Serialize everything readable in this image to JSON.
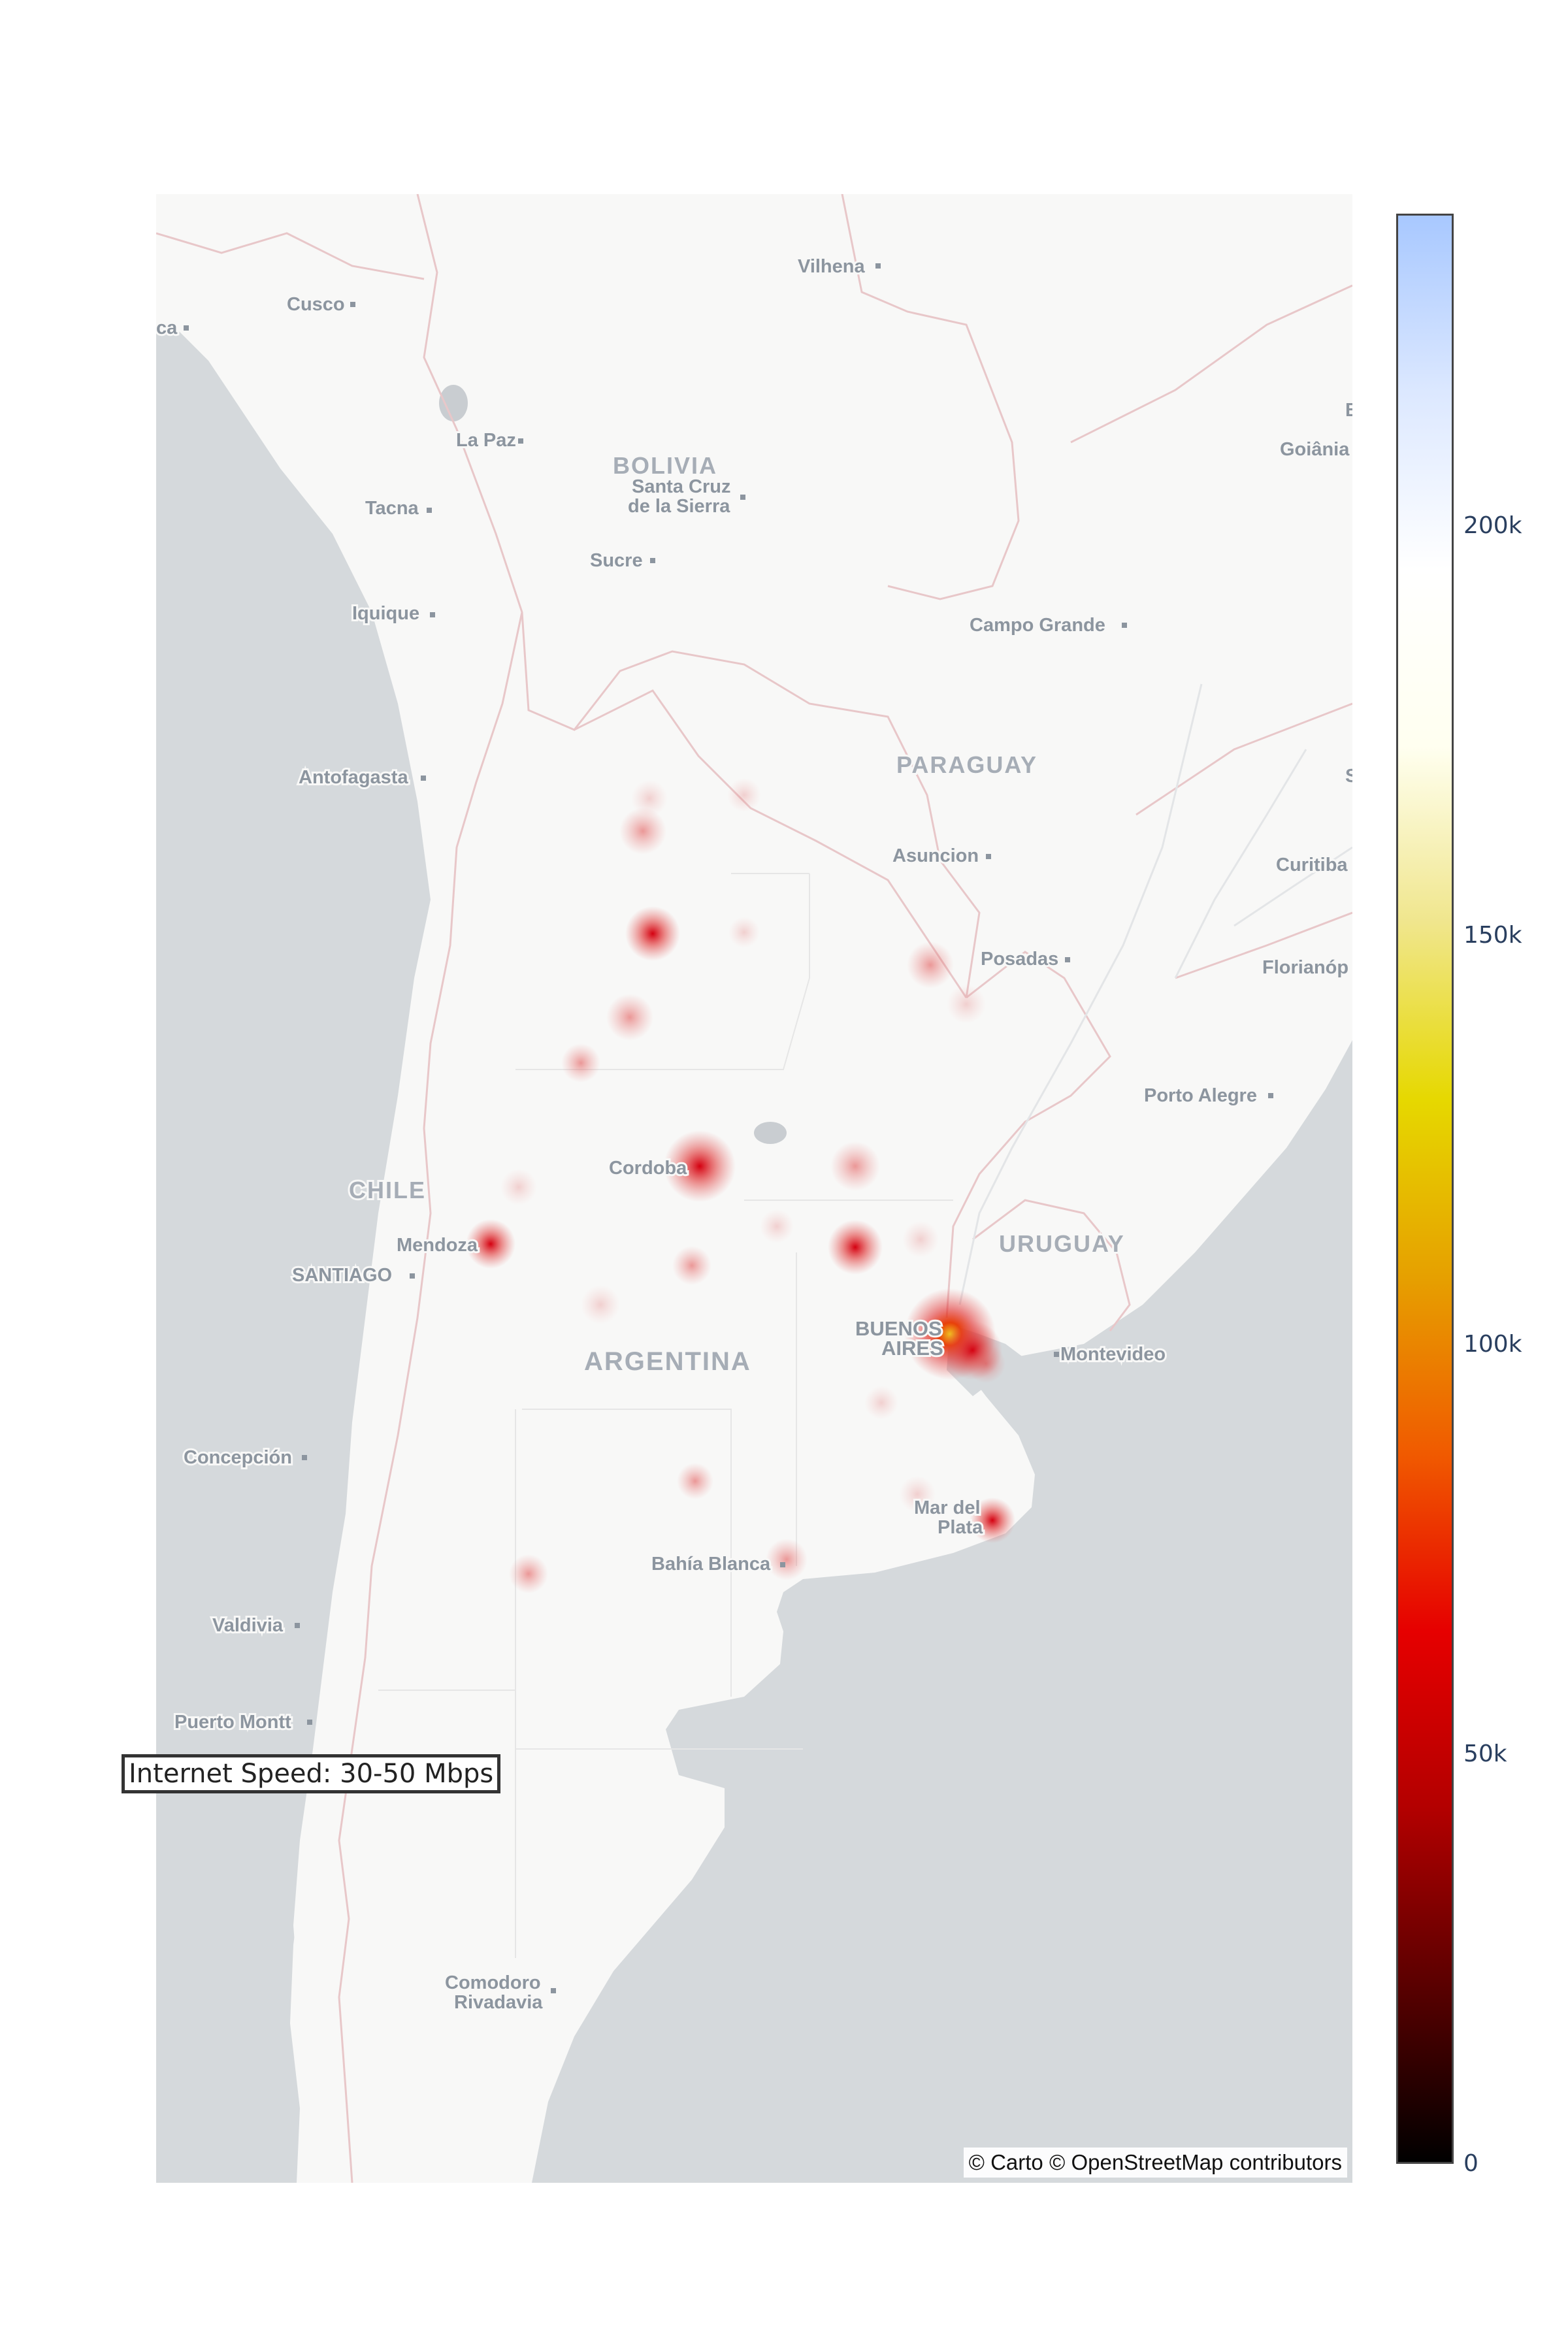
{
  "map": {
    "attribution": "© Carto © OpenStreetMap contributors",
    "annotation": "Internet Speed: 30-50 Mbps",
    "water_color": "#d5d9dc",
    "land_color": "#f8f8f7",
    "border_color": "#e8c7c9",
    "countries": [
      {
        "id": "bolivia",
        "label": "BOLIVIA"
      },
      {
        "id": "paraguay",
        "label": "PARAGUAY"
      },
      {
        "id": "chile",
        "label": "CHILE"
      },
      {
        "id": "argentina",
        "label": "ARGENTINA"
      },
      {
        "id": "uruguay",
        "label": "URUGUAY"
      }
    ],
    "cities": [
      {
        "id": "vilhena",
        "label": "Vilhena"
      },
      {
        "id": "cusco",
        "label": "Cusco"
      },
      {
        "id": "lima",
        "label": "ca"
      },
      {
        "id": "la-paz",
        "label": "La Paz"
      },
      {
        "id": "santa-cruz-1",
        "label": "Santa Cruz"
      },
      {
        "id": "santa-cruz-2",
        "label": "de la Sierra"
      },
      {
        "id": "tacna",
        "label": "Tacna"
      },
      {
        "id": "sucre",
        "label": "Sucre"
      },
      {
        "id": "iquique",
        "label": "Iquique"
      },
      {
        "id": "campo-grande",
        "label": "Campo Grande"
      },
      {
        "id": "goiania",
        "label": "Goiânia"
      },
      {
        "id": "antofagasta",
        "label": "Antofagasta"
      },
      {
        "id": "asuncion",
        "label": "Asuncion"
      },
      {
        "id": "curitiba",
        "label": "Curitiba"
      },
      {
        "id": "posadas",
        "label": "Posadas"
      },
      {
        "id": "florianopolis",
        "label": "Florianóp"
      },
      {
        "id": "porto-alegre",
        "label": "Porto Alegre"
      },
      {
        "id": "cordoba",
        "label": "Cordoba"
      },
      {
        "id": "mendoza",
        "label": "Mendoza"
      },
      {
        "id": "santiago",
        "label": "SANTIAGO"
      },
      {
        "id": "buenos-aires-1",
        "label": "BUENOS"
      },
      {
        "id": "buenos-aires-2",
        "label": "AIRES"
      },
      {
        "id": "montevideo",
        "label": "Montevideo"
      },
      {
        "id": "concepcion",
        "label": "Concepción"
      },
      {
        "id": "mar-del-plata-1",
        "label": "Mar del"
      },
      {
        "id": "mar-del-plata-2",
        "label": "Plata"
      },
      {
        "id": "bahia-blanca",
        "label": "Bahía Blanca"
      },
      {
        "id": "valdivia",
        "label": "Valdivia"
      },
      {
        "id": "puerto-montt",
        "label": "Puerto Montt"
      },
      {
        "id": "comodoro-1",
        "label": "Comodoro"
      },
      {
        "id": "comodoro-2",
        "label": "Rivadavia"
      },
      {
        "id": "brazil-edge-1",
        "label": "B"
      },
      {
        "id": "brazil-edge-2",
        "label": "S"
      }
    ]
  },
  "colorbar": {
    "ticks": [
      "0",
      "50k",
      "100k",
      "150k",
      "200k"
    ],
    "colorscale": [
      "#000000",
      "#5a0000",
      "#b30000",
      "#e60000",
      "#f05a00",
      "#e6a000",
      "#e6d800",
      "#f0e68c",
      "#fffff0",
      "#ffffff",
      "#dce8ff",
      "#a8c8ff"
    ]
  }
}
